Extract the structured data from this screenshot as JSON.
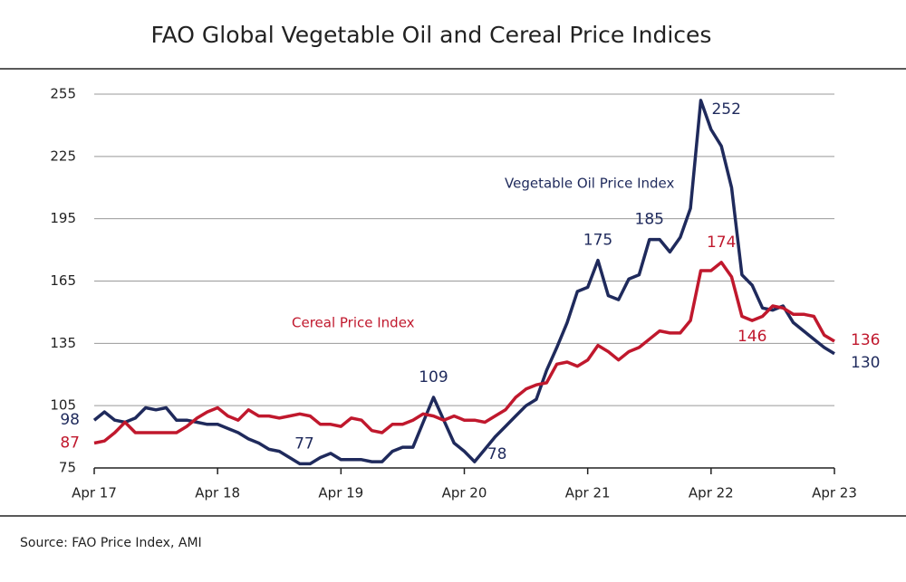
{
  "chart_data": {
    "type": "line",
    "title": "FAO Global Vegetable Oil and Cereal Price Indices",
    "source": "Source: FAO Price Index, AMI",
    "categories": [
      "Apr 17",
      null,
      null,
      null,
      null,
      null,
      null,
      null,
      null,
      null,
      null,
      null,
      "Apr 18",
      null,
      null,
      null,
      null,
      null,
      null,
      null,
      null,
      null,
      null,
      null,
      "Apr 19",
      null,
      null,
      null,
      null,
      null,
      null,
      null,
      null,
      null,
      null,
      null,
      "Apr 20",
      null,
      null,
      null,
      null,
      null,
      null,
      null,
      null,
      null,
      null,
      null,
      "Apr 21",
      null,
      null,
      null,
      null,
      null,
      null,
      null,
      null,
      null,
      null,
      null,
      "Apr 22",
      null,
      null,
      null,
      null,
      null,
      null,
      null,
      null,
      null,
      null,
      null,
      "Apr 23"
    ],
    "series": [
      {
        "name": "Vegetable Oil Price Index",
        "color": "#1f2a5c",
        "values": [
          98,
          102,
          98,
          97,
          99,
          104,
          103,
          104,
          98,
          98,
          97,
          96,
          96,
          94,
          92,
          89,
          87,
          84,
          83,
          80,
          77,
          77,
          80,
          82,
          79,
          79,
          79,
          78,
          78,
          83,
          85,
          85,
          97,
          109,
          98,
          87,
          83,
          78,
          84,
          90,
          95,
          100,
          105,
          108,
          122,
          133,
          145,
          160,
          162,
          175,
          158,
          156,
          166,
          168,
          185,
          185,
          179,
          186,
          200,
          252,
          238,
          230,
          210,
          168,
          163,
          152,
          151,
          153,
          145,
          141,
          137,
          133,
          130
        ],
        "value_labels": [
          "98",
          null,
          null,
          null,
          null,
          null,
          null,
          null,
          null,
          null,
          null,
          null,
          null,
          null,
          null,
          null,
          null,
          null,
          null,
          null,
          "77",
          null,
          null,
          null,
          null,
          null,
          null,
          null,
          null,
          null,
          null,
          null,
          null,
          "109",
          null,
          null,
          null,
          "78",
          null,
          null,
          null,
          null,
          null,
          null,
          null,
          null,
          null,
          null,
          null,
          "175",
          null,
          null,
          null,
          null,
          "185",
          null,
          null,
          null,
          null,
          "252",
          null,
          null,
          null,
          null,
          null,
          null,
          null,
          null,
          null,
          null,
          null,
          null,
          "130"
        ]
      },
      {
        "name": "Cereal Price Index",
        "color": "#c0182d",
        "values": [
          87,
          88,
          92,
          97,
          92,
          92,
          92,
          92,
          92,
          95,
          99,
          102,
          104,
          100,
          98,
          103,
          100,
          100,
          99,
          100,
          101,
          100,
          96,
          96,
          95,
          99,
          98,
          93,
          92,
          96,
          96,
          98,
          101,
          100,
          98,
          100,
          98,
          98,
          97,
          100,
          103,
          109,
          113,
          115,
          116,
          125,
          126,
          124,
          127,
          134,
          131,
          127,
          131,
          133,
          137,
          141,
          140,
          140,
          146,
          170,
          170,
          174,
          167,
          148,
          146,
          148,
          153,
          152,
          149,
          149,
          148,
          139,
          136
        ],
        "value_labels": [
          "87",
          null,
          null,
          null,
          null,
          null,
          null,
          null,
          null,
          null,
          null,
          null,
          null,
          null,
          null,
          null,
          null,
          null,
          null,
          null,
          null,
          null,
          null,
          null,
          null,
          null,
          null,
          null,
          null,
          null,
          null,
          null,
          null,
          null,
          null,
          null,
          null,
          null,
          null,
          null,
          null,
          null,
          null,
          null,
          null,
          null,
          null,
          null,
          null,
          null,
          null,
          null,
          null,
          null,
          null,
          null,
          null,
          null,
          null,
          null,
          null,
          "174",
          null,
          null,
          "146",
          null,
          null,
          null,
          null,
          null,
          null,
          null,
          "136"
        ]
      }
    ],
    "ylim": [
      75,
      255
    ],
    "yticks": [
      75,
      105,
      135,
      165,
      195,
      225,
      255
    ],
    "grid": true
  }
}
